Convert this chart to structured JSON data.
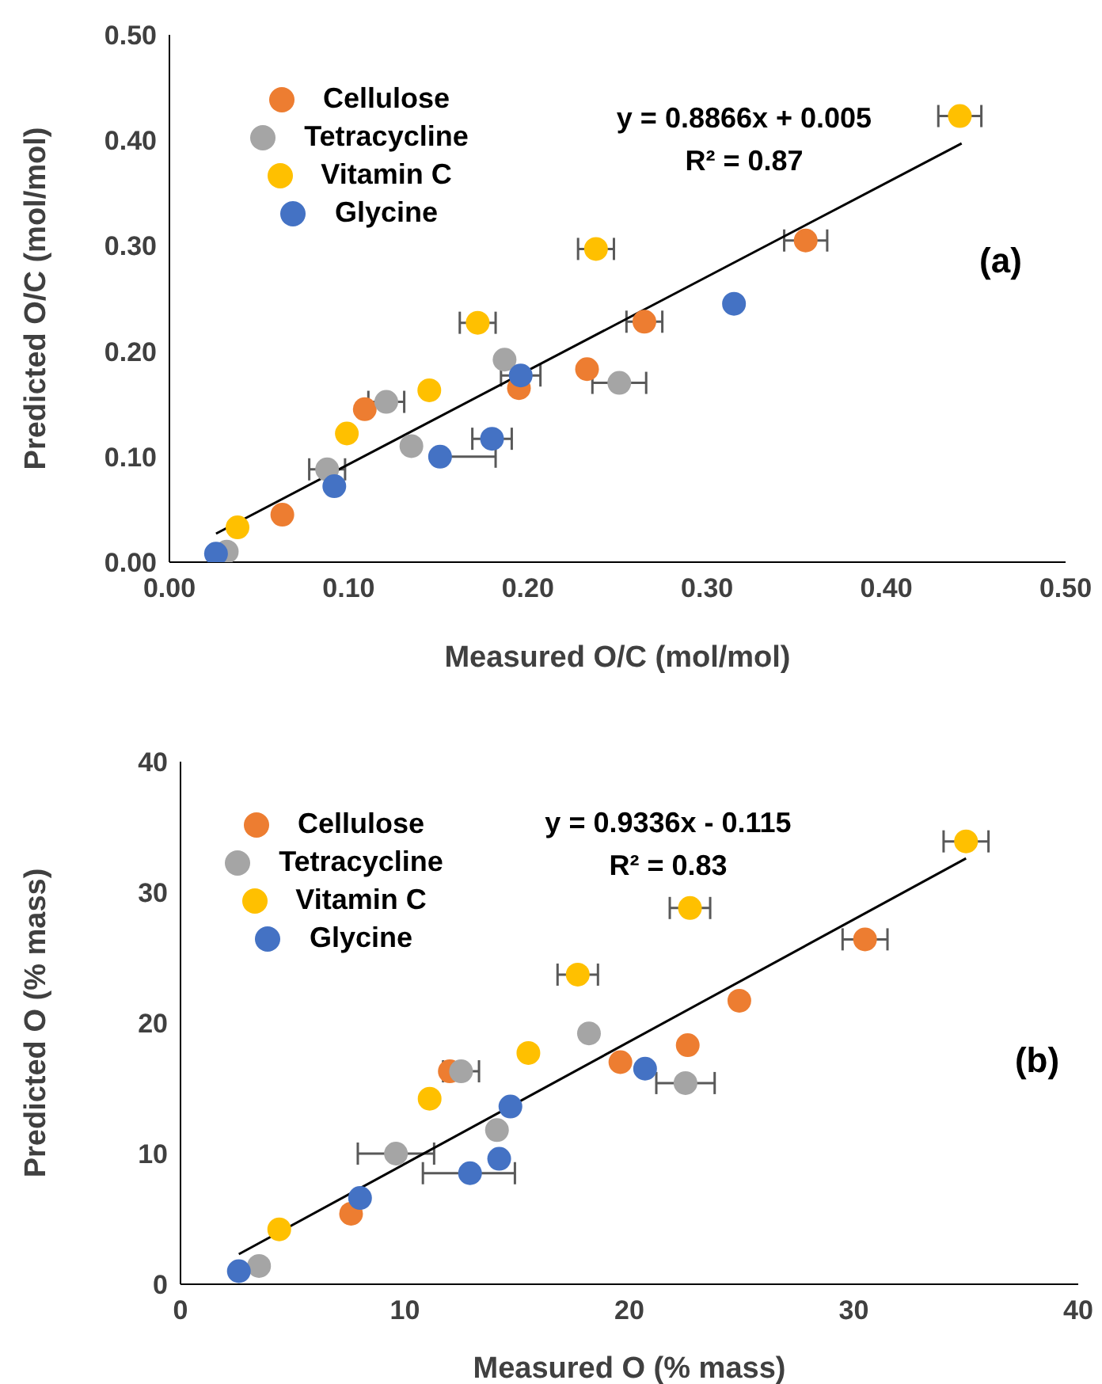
{
  "chart_data": [
    {
      "type": "scatter",
      "xlabel": "Measured O/C (mol/mol)",
      "ylabel": "Predicted O/C (mol/mol)",
      "annotations": [
        "y = 0.8866x + 0.005",
        "R² = 0.87",
        "(a)"
      ],
      "xlim": [
        0,
        0.5
      ],
      "ylim": [
        0,
        0.5
      ],
      "xticks": [
        {
          "value": 0,
          "label": "0.00"
        },
        {
          "value": 0.1,
          "label": "0.10"
        },
        {
          "value": 0.2,
          "label": "0.20"
        },
        {
          "value": 0.3,
          "label": "0.30"
        },
        {
          "value": 0.4,
          "label": "0.40"
        },
        {
          "value": 0.5,
          "label": "0.50"
        }
      ],
      "yticks": [
        {
          "value": 0,
          "label": "0.00"
        },
        {
          "value": 0.1,
          "label": "0.10"
        },
        {
          "value": 0.2,
          "label": "0.20"
        },
        {
          "value": 0.3,
          "label": "0.30"
        },
        {
          "value": 0.4,
          "label": "0.40"
        },
        {
          "value": 0.5,
          "label": "0.50"
        }
      ],
      "legend": "top left",
      "marker": "circle",
      "series": [
        {
          "name": "Cellulose",
          "color": "#ed7d31",
          "x": [
            0.063,
            0.109,
            0.195,
            0.233,
            0.265,
            0.355
          ],
          "values": [
            0.045,
            0.145,
            0.165,
            0.183,
            0.228,
            0.305
          ],
          "xerrors": [
            null,
            null,
            null,
            null,
            0.01,
            0.012
          ]
        },
        {
          "name": "Tetracycline",
          "color": "#a5a5a5",
          "x": [
            0.032,
            0.088,
            0.121,
            0.135,
            0.187,
            0.251
          ],
          "values": [
            0.01,
            0.088,
            0.152,
            0.11,
            0.192,
            0.17
          ],
          "xerrors": [
            null,
            0.01,
            0.01,
            null,
            null,
            0.015
          ]
        },
        {
          "name": "Vitamin C",
          "color": "#ffc000",
          "x": [
            0.038,
            0.099,
            0.145,
            0.172,
            0.238,
            0.441
          ],
          "values": [
            0.033,
            0.122,
            0.163,
            0.227,
            0.297,
            0.423
          ],
          "xerrors": [
            null,
            null,
            null,
            0.01,
            0.01,
            0.012
          ]
        },
        {
          "name": "Glycine",
          "color": "#4472c4",
          "x": [
            0.026,
            0.092,
            0.151,
            0.18,
            0.196,
            0.315
          ],
          "values": [
            0.008,
            0.072,
            0.1,
            0.117,
            0.177,
            0.245
          ],
          "xerrors": [
            null,
            null,
            [
              0.151,
              0.182
            ],
            0.011,
            0.011,
            null
          ]
        },
        {
          "type": "line",
          "color": "#000000",
          "marker": "none",
          "x": [
            0.026,
            0.442
          ],
          "values": [
            0.027,
            0.397
          ]
        }
      ]
    },
    {
      "type": "scatter",
      "xlabel": "Measured O (% mass)",
      "ylabel": "Predicted O (% mass)",
      "annotations": [
        "y = 0.9336x - 0.115",
        "R² = 0.83",
        "(b)"
      ],
      "xlim": [
        0,
        40
      ],
      "ylim": [
        0,
        40
      ],
      "xticks": [
        0,
        10,
        20,
        30,
        40
      ],
      "yticks": [
        0,
        10,
        20,
        30,
        40
      ],
      "legend": "top left",
      "marker": "circle",
      "series": [
        {
          "name": "Cellulose",
          "color": "#ed7d31",
          "x": [
            7.6,
            12.0,
            19.6,
            22.6,
            24.9,
            30.5
          ],
          "values": [
            5.4,
            16.3,
            17.0,
            18.3,
            21.7,
            26.4
          ],
          "xerrors": [
            null,
            null,
            null,
            null,
            null,
            1.0
          ]
        },
        {
          "name": "Tetracycline",
          "color": "#a5a5a5",
          "x": [
            3.5,
            9.6,
            12.5,
            14.1,
            18.2,
            22.5
          ],
          "values": [
            1.4,
            10.0,
            16.3,
            11.8,
            19.2,
            15.4
          ],
          "xerrors": [
            null,
            1.7,
            0.8,
            null,
            null,
            1.3
          ]
        },
        {
          "name": "Vitamin C",
          "color": "#ffc000",
          "x": [
            4.4,
            11.1,
            15.5,
            17.7,
            22.7,
            35.0
          ],
          "values": [
            4.2,
            14.2,
            17.7,
            23.7,
            28.8,
            33.9
          ],
          "xerrors": [
            null,
            null,
            null,
            0.9,
            0.9,
            1.0
          ]
        },
        {
          "name": "Glycine",
          "color": "#4472c4",
          "x": [
            2.6,
            8.0,
            12.9,
            14.2,
            14.7,
            20.7
          ],
          "values": [
            1.0,
            6.6,
            8.5,
            9.6,
            13.6,
            16.5
          ],
          "xerrors": [
            null,
            null,
            [
              10.8,
              14.9
            ],
            null,
            null,
            null
          ]
        },
        {
          "type": "line",
          "color": "#000000",
          "marker": "none",
          "x": [
            2.6,
            35.0
          ],
          "values": [
            2.3,
            32.6
          ]
        }
      ]
    }
  ]
}
